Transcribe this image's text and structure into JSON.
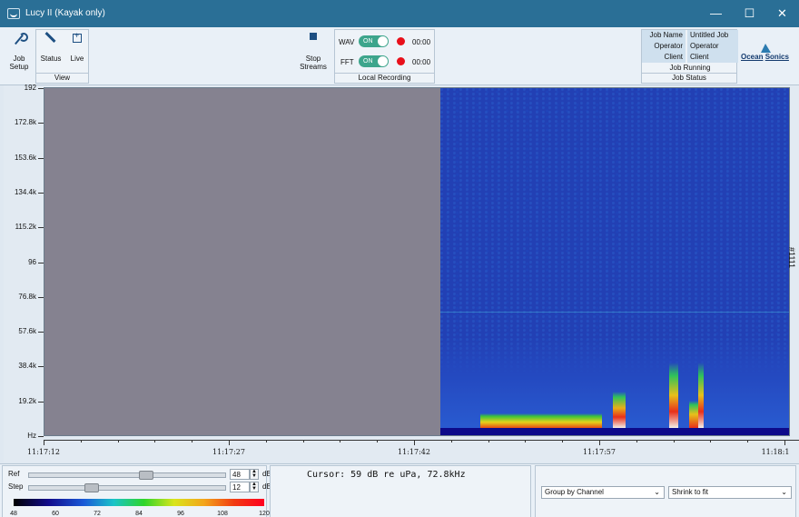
{
  "window": {
    "title": "Lucy II (Kayak only)",
    "controls": {
      "minimize": "—",
      "maximize": "☐",
      "close": "✕"
    }
  },
  "ribbon": {
    "job_setup": {
      "line1": "Job",
      "line2": "Setup"
    },
    "view": {
      "group_label": "View",
      "status_label": "Status",
      "live_label": "Live"
    },
    "stop_streams": {
      "line1": "Stop",
      "line2": "Streams"
    },
    "recording": {
      "group_label": "Local Recording",
      "rows": [
        {
          "name": "WAV",
          "toggle": "ON",
          "time": "00:00"
        },
        {
          "name": "FFT",
          "toggle": "ON",
          "time": "00:00"
        }
      ]
    },
    "job_status": {
      "group_label": "Job Status",
      "rows": [
        {
          "key": "Job Name",
          "value": "Untitled Job"
        },
        {
          "key": "Operator",
          "value": "Operator"
        },
        {
          "key": "Client",
          "value": "Client"
        }
      ],
      "state": "Job Running"
    },
    "logo": {
      "left": "Ocean",
      "right": "Sonics"
    }
  },
  "spectrogram": {
    "y_ticks": [
      "192",
      "172.8k",
      "153.6k",
      "134.4k",
      "115.2k",
      "96",
      "76.8k",
      "57.6k",
      "38.4k",
      "19.2k",
      "Hz"
    ],
    "x_ticks": [
      "11:17:12",
      "11:17:27",
      "11:17:42",
      "11:17:57",
      "11:18:1"
    ],
    "channel_label": "#1111",
    "colors": {
      "empty": "#858290",
      "background": "#2240b4"
    }
  },
  "controls": {
    "ref": {
      "label": "Ref",
      "value": "48",
      "unit": "dB",
      "fraction": 0.6
    },
    "step": {
      "label": "Step",
      "value": "12",
      "unit": "dB",
      "fraction": 0.3
    },
    "colorbar_ticks": [
      "48",
      "60",
      "72",
      "84",
      "96",
      "108",
      "120"
    ],
    "cursor_text": "Cursor: 59 dB re uPa, 72.8kHz",
    "group_by": "Group by Channel",
    "shrink": "Shrink to fit"
  }
}
